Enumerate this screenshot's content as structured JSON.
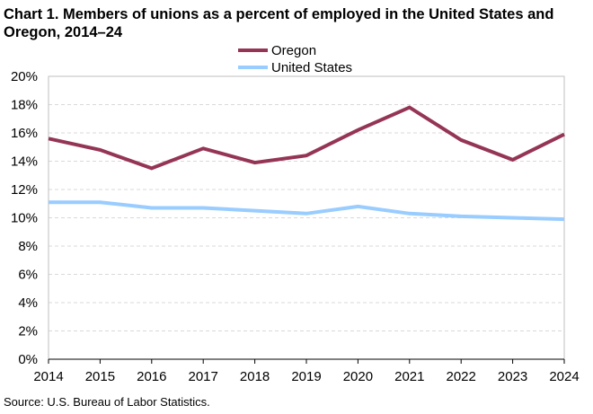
{
  "chart_data": {
    "type": "line",
    "title": "Chart 1. Members of unions as a percent of employed in the United States and Oregon, 2014–24",
    "xlabel": "",
    "ylabel": "",
    "x": [
      "2014",
      "2015",
      "2016",
      "2017",
      "2018",
      "2019",
      "2020",
      "2021",
      "2022",
      "2023",
      "2024"
    ],
    "ylim": [
      0,
      20
    ],
    "yticks": [
      0,
      2,
      4,
      6,
      8,
      10,
      12,
      14,
      16,
      18,
      20
    ],
    "ytick_suffix": "%",
    "grid": true,
    "legend_position": "top",
    "series": [
      {
        "name": "Oregon",
        "color": "#953555",
        "values": [
          15.6,
          14.8,
          13.5,
          14.9,
          13.9,
          14.4,
          16.2,
          17.8,
          15.5,
          14.1,
          15.9
        ]
      },
      {
        "name": "United States",
        "color": "#99ccff",
        "values": [
          11.1,
          11.1,
          10.7,
          10.7,
          10.5,
          10.3,
          10.8,
          10.3,
          10.1,
          10.0,
          9.9
        ]
      }
    ]
  },
  "source": "Source:  U.S. Bureau  of Labor Statistics."
}
